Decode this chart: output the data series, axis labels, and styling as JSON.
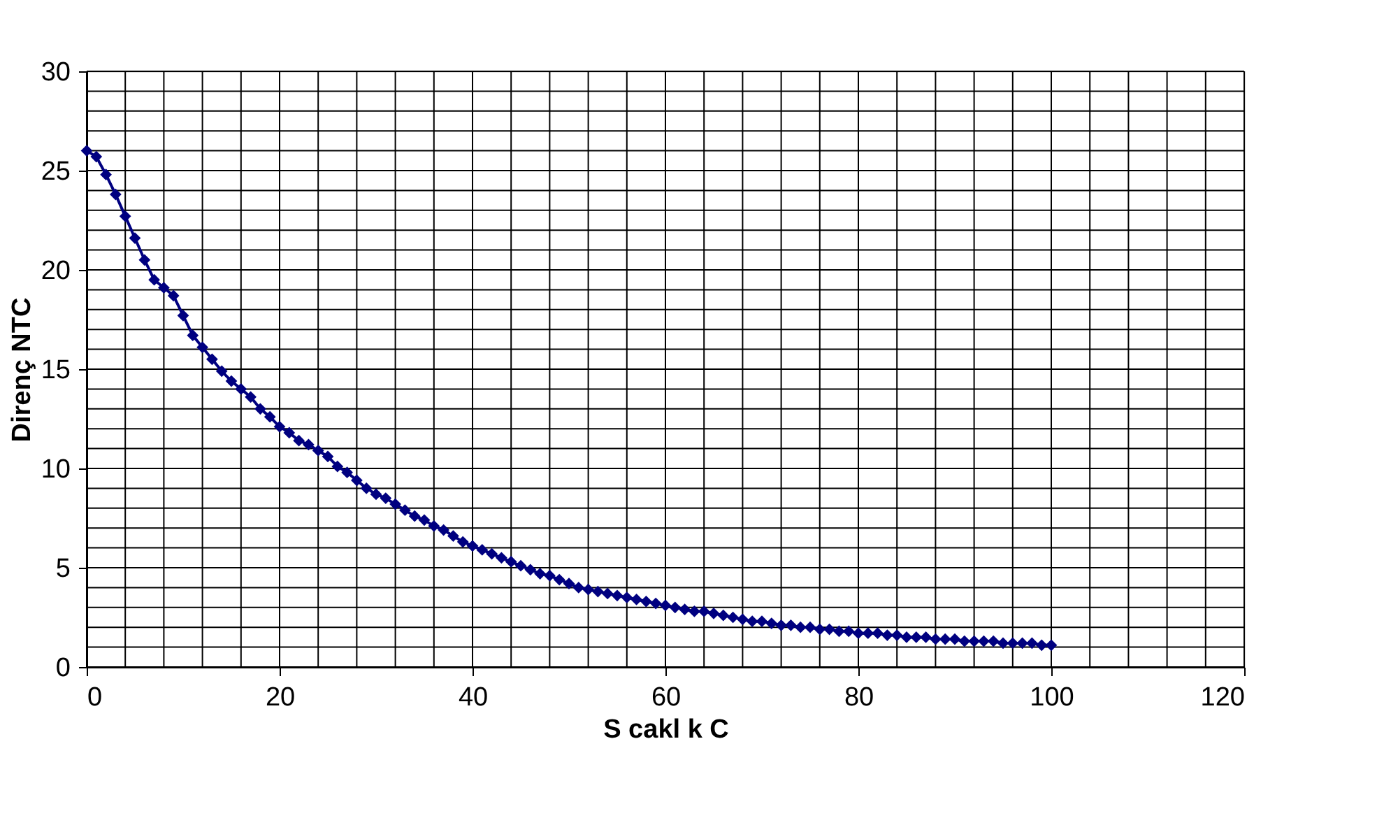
{
  "chart_data": {
    "type": "line",
    "xlabel": "S cakl k C",
    "ylabel": "Direnç NTC",
    "x": [
      0,
      1,
      2,
      3,
      4,
      5,
      6,
      7,
      8,
      9,
      10,
      11,
      12,
      13,
      14,
      15,
      16,
      17,
      18,
      19,
      20,
      21,
      22,
      23,
      24,
      25,
      26,
      27,
      28,
      29,
      30,
      31,
      32,
      33,
      34,
      35,
      36,
      37,
      38,
      39,
      40,
      41,
      42,
      43,
      44,
      45,
      46,
      47,
      48,
      49,
      50,
      51,
      52,
      53,
      54,
      55,
      56,
      57,
      58,
      59,
      60,
      61,
      62,
      63,
      64,
      65,
      66,
      67,
      68,
      69,
      70,
      71,
      72,
      73,
      74,
      75,
      76,
      77,
      78,
      79,
      80,
      81,
      82,
      83,
      84,
      85,
      86,
      87,
      88,
      89,
      90,
      91,
      92,
      93,
      94,
      95,
      96,
      97,
      98,
      99,
      100
    ],
    "series": [
      {
        "color": "#000080",
        "values": [
          26.0,
          25.7,
          24.8,
          23.8,
          22.7,
          21.6,
          20.5,
          19.5,
          19.1,
          18.7,
          17.7,
          16.7,
          16.1,
          15.5,
          14.9,
          14.4,
          14.0,
          13.6,
          13.0,
          12.6,
          12.1,
          11.8,
          11.4,
          11.2,
          10.9,
          10.6,
          10.1,
          9.8,
          9.4,
          9.0,
          8.7,
          8.5,
          8.2,
          7.9,
          7.6,
          7.4,
          7.1,
          6.9,
          6.6,
          6.3,
          6.1,
          5.9,
          5.7,
          5.5,
          5.3,
          5.1,
          4.9,
          4.7,
          4.6,
          4.4,
          4.2,
          4.0,
          3.9,
          3.8,
          3.7,
          3.6,
          3.5,
          3.4,
          3.3,
          3.2,
          3.1,
          3.0,
          2.9,
          2.8,
          2.8,
          2.7,
          2.6,
          2.5,
          2.4,
          2.3,
          2.3,
          2.2,
          2.1,
          2.1,
          2.0,
          2.0,
          1.9,
          1.9,
          1.8,
          1.8,
          1.7,
          1.7,
          1.7,
          1.6,
          1.6,
          1.5,
          1.5,
          1.5,
          1.4,
          1.4,
          1.4,
          1.3,
          1.3,
          1.3,
          1.3,
          1.2,
          1.2,
          1.2,
          1.2,
          1.1,
          1.1
        ]
      }
    ],
    "xlim": [
      0,
      120
    ],
    "xticks": [
      0,
      20,
      40,
      60,
      80,
      100,
      120
    ],
    "ylim": [
      0,
      30
    ],
    "yticks": [
      0,
      5,
      10,
      15,
      20,
      25,
      30
    ],
    "grid": true,
    "legend": false,
    "marker": "diamond",
    "line_style": "solid"
  }
}
